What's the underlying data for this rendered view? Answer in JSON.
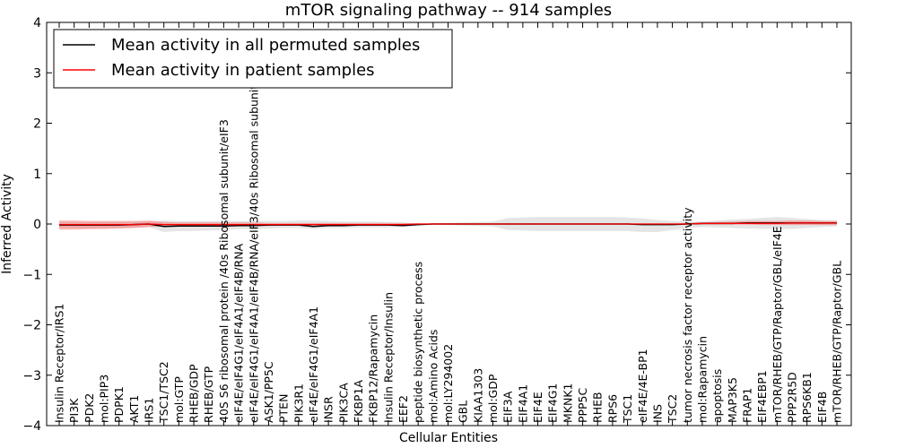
{
  "chart_data": {
    "type": "line",
    "title": "mTOR signaling pathway -- 914 samples",
    "xlabel": "Cellular Entities",
    "ylabel": "Inferred Activity",
    "ylim": [
      -4,
      4
    ],
    "yticks": [
      4,
      3,
      2,
      1,
      0,
      -1,
      -2,
      -3,
      -4
    ],
    "ytick_labels": [
      "4",
      "3",
      "2",
      "1",
      "0",
      "−1",
      "−2",
      "−3",
      "−4"
    ],
    "legend_position": "top-left",
    "categories": [
      "Insulin Receptor/IRS1",
      "PI3K",
      "PDK2",
      "mol:PIP3",
      "PDPK1",
      "AKT1",
      "IRS1",
      "TSC1/TSC2",
      "mol:GTP",
      "RHEB/GDP",
      "RHEB/GTP",
      "40S S6 ribosomal protein /40s Ribosomal subunit/eIF3",
      "eIF4E/eIF4G1/eIF4A1/eIF4B/RNA",
      "eIF4E/eIF4G1/eIF4A1/eIF4B/RNA/eIF3/40s Ribosomal subunit",
      "ASK1/PP5C",
      "PTEN",
      "PIK3R1",
      "eIF4E/eIF4G1/eIF4A1",
      "INSR",
      "PIK3CA",
      "FKBP1A",
      "FKBP12/Rapamycin",
      "Insulin Receptor/Insulin",
      "EEF2",
      "peptide biosynthetic process",
      "mol:Amino Acids",
      "mol:LY294002",
      "GBL",
      "KIAA1303",
      "mol:GDP",
      "EIF3A",
      "EIF4A1",
      "EIF4E",
      "EIF4G1",
      "MKNK1",
      "PPP5C",
      "RHEB",
      "RPS6",
      "TSC1",
      "eIF4E/4E-BP1",
      "INS",
      "TSC2",
      "tumor necrosis factor receptor activity",
      "mol:Rapamycin",
      "apoptosis",
      "MAP3K5",
      "FRAP1",
      "EIF4EBP1",
      "mTOR/RHEB/GTP/Raptor/GBL/eIF4E",
      "PPP2R5D",
      "RPS6KB1",
      "EIF4B",
      "mTOR/RHEB/GTP/Raptor/GBL"
    ],
    "series": [
      {
        "name": "Mean activity in all permuted samples",
        "color": "#000000",
        "values": [
          -0.02,
          -0.02,
          -0.02,
          -0.02,
          -0.02,
          -0.01,
          0.0,
          -0.05,
          -0.04,
          -0.04,
          -0.04,
          -0.04,
          -0.03,
          -0.03,
          -0.02,
          -0.02,
          -0.02,
          -0.05,
          -0.03,
          -0.03,
          -0.02,
          -0.02,
          -0.02,
          -0.03,
          -0.01,
          0.0,
          0.0,
          0.0,
          0.0,
          0.0,
          0.0,
          0.0,
          0.0,
          0.0,
          0.0,
          0.0,
          0.0,
          0.0,
          0.0,
          -0.01,
          -0.01,
          -0.01,
          0.0,
          0.01,
          0.01,
          0.01,
          0.02,
          0.02,
          0.02,
          0.02,
          0.02,
          0.02,
          0.02
        ],
        "band_lower": [
          -0.08,
          -0.08,
          -0.09,
          -0.08,
          -0.08,
          -0.07,
          -0.06,
          -0.16,
          -0.14,
          -0.14,
          -0.13,
          -0.12,
          -0.1,
          -0.1,
          -0.09,
          -0.08,
          -0.08,
          -0.1,
          -0.08,
          -0.08,
          -0.07,
          -0.07,
          -0.07,
          -0.06,
          -0.03,
          -0.01,
          -0.02,
          -0.03,
          -0.04,
          -0.05,
          -0.12,
          -0.13,
          -0.14,
          -0.14,
          -0.14,
          -0.14,
          -0.14,
          -0.14,
          -0.14,
          -0.16,
          -0.16,
          -0.12,
          -0.08,
          -0.06,
          -0.07,
          -0.08,
          -0.09,
          -0.1,
          -0.1,
          -0.1,
          -0.08,
          -0.06,
          -0.05
        ],
        "band_upper": [
          0.04,
          0.04,
          0.04,
          0.04,
          0.04,
          0.04,
          0.05,
          0.07,
          0.06,
          0.06,
          0.06,
          0.06,
          0.06,
          0.06,
          0.06,
          0.06,
          0.07,
          0.07,
          0.06,
          0.05,
          0.05,
          0.05,
          0.04,
          0.03,
          0.01,
          0.01,
          0.02,
          0.03,
          0.04,
          0.05,
          0.12,
          0.13,
          0.14,
          0.14,
          0.14,
          0.14,
          0.14,
          0.14,
          0.13,
          0.11,
          0.08,
          0.06,
          0.05,
          0.05,
          0.07,
          0.09,
          0.1,
          0.12,
          0.14,
          0.12,
          0.1,
          0.08,
          0.07
        ]
      },
      {
        "name": "Mean activity in patient samples",
        "color": "#ff0000",
        "values": [
          -0.01,
          -0.01,
          -0.01,
          -0.01,
          -0.01,
          -0.01,
          0.0,
          -0.01,
          -0.01,
          -0.01,
          -0.01,
          -0.01,
          -0.01,
          -0.01,
          -0.01,
          -0.01,
          -0.01,
          -0.01,
          -0.01,
          -0.01,
          -0.01,
          -0.01,
          -0.01,
          -0.01,
          0.0,
          0.0,
          0.0,
          0.0,
          0.0,
          0.0,
          0.0,
          0.0,
          0.0,
          0.0,
          0.0,
          0.0,
          0.0,
          0.0,
          0.0,
          0.0,
          0.0,
          0.0,
          0.0,
          0.01,
          0.01,
          0.01,
          0.01,
          0.01,
          0.01,
          0.02,
          0.02,
          0.02,
          0.02
        ],
        "band_lower": [
          -0.11,
          -0.11,
          -0.1,
          -0.1,
          -0.09,
          -0.08,
          -0.06,
          -0.05,
          -0.05,
          -0.05,
          -0.05,
          -0.04,
          -0.04,
          -0.04,
          -0.04,
          -0.03,
          -0.03,
          -0.03,
          -0.03,
          -0.03,
          -0.03,
          -0.03,
          -0.03,
          -0.03,
          -0.01,
          -0.01,
          -0.01,
          -0.01,
          -0.01,
          -0.01,
          -0.01,
          -0.01,
          -0.01,
          -0.01,
          -0.01,
          -0.01,
          -0.01,
          -0.01,
          -0.01,
          -0.01,
          -0.01,
          -0.01,
          -0.01,
          -0.01,
          -0.01,
          -0.01,
          -0.01,
          -0.02,
          -0.02,
          -0.02,
          -0.02,
          -0.02,
          -0.02
        ],
        "band_upper": [
          0.07,
          0.07,
          0.06,
          0.06,
          0.06,
          0.06,
          0.07,
          0.04,
          0.03,
          0.03,
          0.03,
          0.03,
          0.03,
          0.03,
          0.02,
          0.02,
          0.02,
          0.02,
          0.02,
          0.02,
          0.02,
          0.02,
          0.02,
          0.02,
          0.01,
          0.01,
          0.01,
          0.01,
          0.01,
          0.01,
          0.01,
          0.01,
          0.01,
          0.01,
          0.01,
          0.01,
          0.01,
          0.01,
          0.01,
          0.01,
          0.01,
          0.01,
          0.02,
          0.03,
          0.04,
          0.05,
          0.06,
          0.06,
          0.06,
          0.07,
          0.07,
          0.06,
          0.06
        ]
      }
    ]
  }
}
